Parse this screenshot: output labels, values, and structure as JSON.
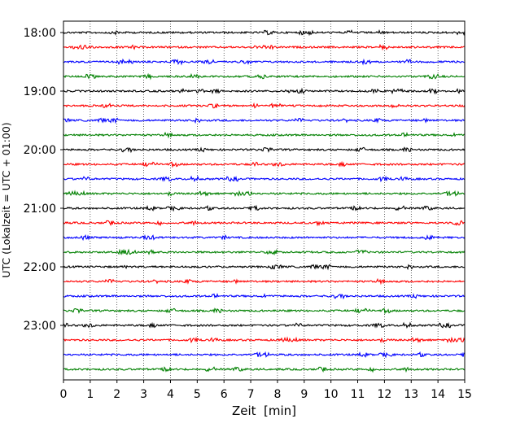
{
  "chart_data": {
    "type": "line",
    "title": "",
    "xlabel": "Zeit  [min]",
    "ylabel": "UTC (Lokalzeit = UTC + 01:00)",
    "xlim": [
      0,
      15
    ],
    "x_ticks": [
      "0",
      "1",
      "2",
      "3",
      "4",
      "5",
      "6",
      "7",
      "8",
      "9",
      "10",
      "11",
      "12",
      "13",
      "14",
      "15"
    ],
    "y_tick_labels": [
      "18:00",
      "19:00",
      "20:00",
      "21:00",
      "22:00",
      "23:00"
    ],
    "grid": "vertical dotted lines at each minute",
    "trace_interval_minutes": 15,
    "traces": [
      {
        "start": "18:00",
        "color": "#000000"
      },
      {
        "start": "18:15",
        "color": "#ff0000"
      },
      {
        "start": "18:30",
        "color": "#0000ff"
      },
      {
        "start": "18:45",
        "color": "#008000"
      },
      {
        "start": "19:00",
        "color": "#000000"
      },
      {
        "start": "19:15",
        "color": "#ff0000"
      },
      {
        "start": "19:30",
        "color": "#0000ff"
      },
      {
        "start": "19:45",
        "color": "#008000"
      },
      {
        "start": "20:00",
        "color": "#000000"
      },
      {
        "start": "20:15",
        "color": "#ff0000"
      },
      {
        "start": "20:30",
        "color": "#0000ff"
      },
      {
        "start": "20:45",
        "color": "#008000"
      },
      {
        "start": "21:00",
        "color": "#000000"
      },
      {
        "start": "21:15",
        "color": "#ff0000"
      },
      {
        "start": "21:30",
        "color": "#0000ff"
      },
      {
        "start": "21:45",
        "color": "#008000"
      },
      {
        "start": "22:00",
        "color": "#000000"
      },
      {
        "start": "22:15",
        "color": "#ff0000"
      },
      {
        "start": "22:30",
        "color": "#0000ff"
      },
      {
        "start": "22:45",
        "color": "#008000"
      },
      {
        "start": "23:00",
        "color": "#000000"
      },
      {
        "start": "23:15",
        "color": "#ff0000"
      },
      {
        "start": "23:30",
        "color": "#0000ff"
      },
      {
        "start": "23:45",
        "color": "#008000"
      }
    ]
  }
}
